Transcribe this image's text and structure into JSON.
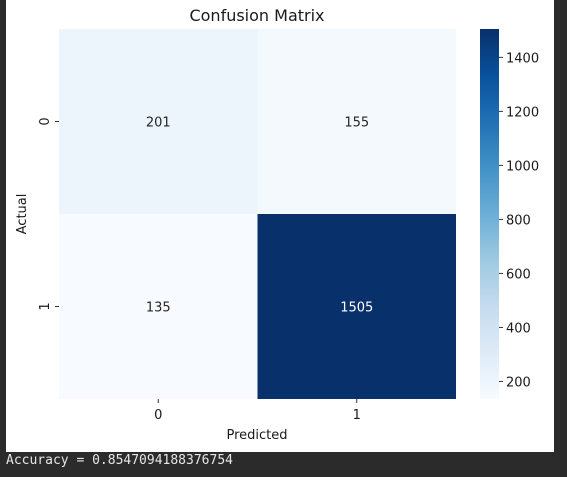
{
  "chart_data": {
    "type": "heatmap",
    "title": "Confusion Matrix",
    "xlabel": "Predicted",
    "ylabel": "Actual",
    "x_categories": [
      "0",
      "1"
    ],
    "y_categories": [
      "0",
      "1"
    ],
    "values": [
      [
        201,
        155
      ],
      [
        135,
        1505
      ]
    ],
    "colormap": "Blues",
    "vmin": 135,
    "vmax": 1505,
    "colorbar_ticks": [
      200,
      400,
      600,
      800,
      1000,
      1200,
      1400
    ],
    "colors": {
      "low": "#f7fbff",
      "high": "#08306b"
    }
  },
  "console": {
    "output": "Accuracy = 0.8547094188376754"
  }
}
